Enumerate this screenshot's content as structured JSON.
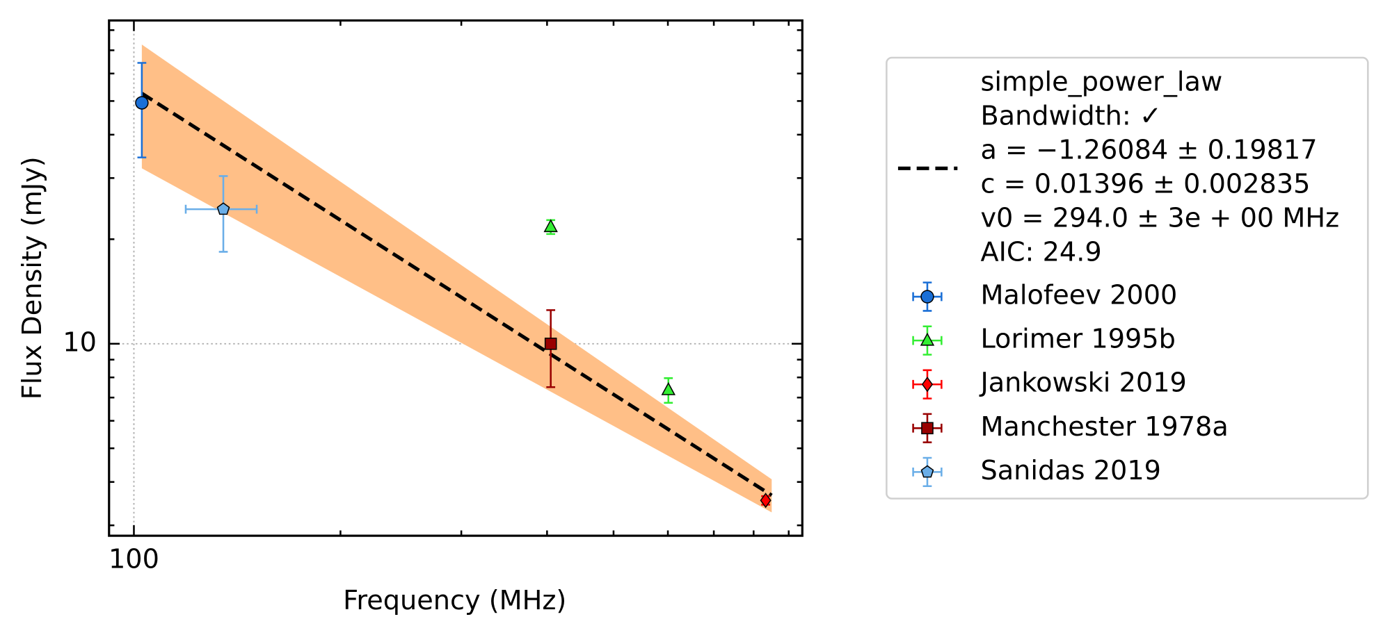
{
  "chart_data": {
    "type": "scatter",
    "xlabel": "Frequency (MHz)",
    "ylabel": "Flux Density (mJy)",
    "xscale": "log",
    "yscale": "log",
    "xlim": [
      92,
      942
    ],
    "ylim": [
      2.8,
      85.3
    ],
    "xticks": [
      100
    ],
    "yticks": [
      10
    ],
    "xminorticks": [
      200,
      300,
      400,
      500,
      600,
      700,
      800,
      900
    ],
    "yminorticks": [
      3,
      4,
      5,
      6,
      7,
      8,
      9,
      20,
      30,
      40,
      50,
      60,
      70,
      80
    ],
    "grid": true,
    "legend": "outside right",
    "fit": {
      "label": [
        "simple_power_law",
        "Bandwidth: ✓",
        "a = −1.26084 ± 0.19817",
        "c = 0.01396 ± 0.002835",
        "v0 = 294.0 ± 3e + 00 MHz",
        "AIC: 24.9"
      ],
      "color": "#000000",
      "band_color": "#ffbf87",
      "x": [
        102.7,
        850
      ],
      "y": [
        52.6,
        3.66
      ],
      "band_lower": [
        32.0,
        3.27
      ],
      "band_upper": [
        72.7,
        4.07
      ]
    },
    "series": [
      {
        "name": "Malofeev 2000",
        "color": "#1a6fd6",
        "marker": "circle",
        "x": [
          102.7
        ],
        "values": [
          49.4
        ],
        "yerr": [
          15
        ]
      },
      {
        "name": "Lorimer 1995b",
        "color": "#33ee33",
        "marker": "triangle",
        "x": [
          405,
          601
        ],
        "values": [
          21.7,
          7.36
        ],
        "yerr": [
          1.0,
          0.6
        ]
      },
      {
        "name": "Jankowski 2019",
        "color": "#ff0000",
        "marker": "diamond",
        "x": [
          833
        ],
        "values": [
          3.54
        ],
        "yerr": [
          0.1
        ]
      },
      {
        "name": "Manchester 1978a",
        "color": "#990000",
        "marker": "square",
        "x": [
          405
        ],
        "values": [
          10
        ],
        "yerr": [
          2.5
        ]
      },
      {
        "name": "Sanidas 2019",
        "color": "#6aaee8",
        "marker": "pentagon",
        "x": [
          135
        ],
        "values": [
          24.4
        ],
        "yerr": [
          6
        ],
        "xerr": [
          16
        ]
      }
    ]
  }
}
